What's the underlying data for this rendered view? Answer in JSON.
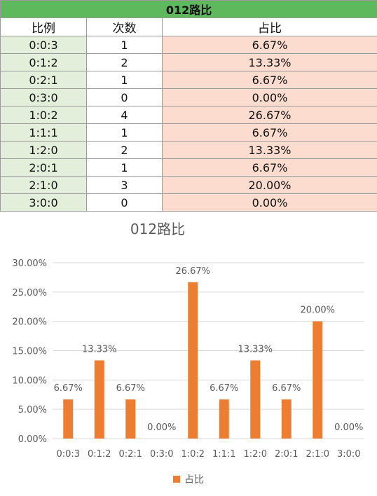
{
  "table": {
    "title": "012路比",
    "headers": [
      "比例",
      "次数",
      "占比"
    ],
    "rows": [
      {
        "ratio": "0:0:3",
        "count": "1",
        "pct": "6.67%"
      },
      {
        "ratio": "0:1:2",
        "count": "2",
        "pct": "13.33%"
      },
      {
        "ratio": "0:2:1",
        "count": "1",
        "pct": "6.67%"
      },
      {
        "ratio": "0:3:0",
        "count": "0",
        "pct": "0.00%"
      },
      {
        "ratio": "1:0:2",
        "count": "4",
        "pct": "26.67%"
      },
      {
        "ratio": "1:1:1",
        "count": "1",
        "pct": "6.67%"
      },
      {
        "ratio": "1:2:0",
        "count": "2",
        "pct": "13.33%"
      },
      {
        "ratio": "2:0:1",
        "count": "1",
        "pct": "6.67%"
      },
      {
        "ratio": "2:1:0",
        "count": "3",
        "pct": "20.00%"
      },
      {
        "ratio": "3:0:0",
        "count": "0",
        "pct": "0.00%"
      }
    ]
  },
  "chart_data": {
    "type": "bar",
    "title": "012路比",
    "categories": [
      "0:0:3",
      "0:1:2",
      "0:2:1",
      "0:3:0",
      "1:0:2",
      "1:1:1",
      "1:2:0",
      "2:0:1",
      "2:1:0",
      "3:0:0"
    ],
    "series": [
      {
        "name": "占比",
        "values": [
          6.67,
          13.33,
          6.67,
          0,
          26.67,
          6.67,
          13.33,
          6.67,
          20.0,
          0
        ],
        "color": "#ed7d31"
      }
    ],
    "data_labels": [
      "6.67%",
      "13.33%",
      "6.67%",
      "0.00%",
      "26.67%",
      "6.67%",
      "13.33%",
      "6.67%",
      "20.00%",
      "0.00%"
    ],
    "y_ticks": [
      "0.00%",
      "5.00%",
      "10.00%",
      "15.00%",
      "20.00%",
      "25.00%",
      "30.00%"
    ],
    "ylim": [
      0,
      30
    ],
    "grid": true,
    "legend_position": "bottom",
    "colors": {
      "bar": "#ed7d31",
      "grid": "#d9d9d9",
      "text": "#595959"
    }
  }
}
